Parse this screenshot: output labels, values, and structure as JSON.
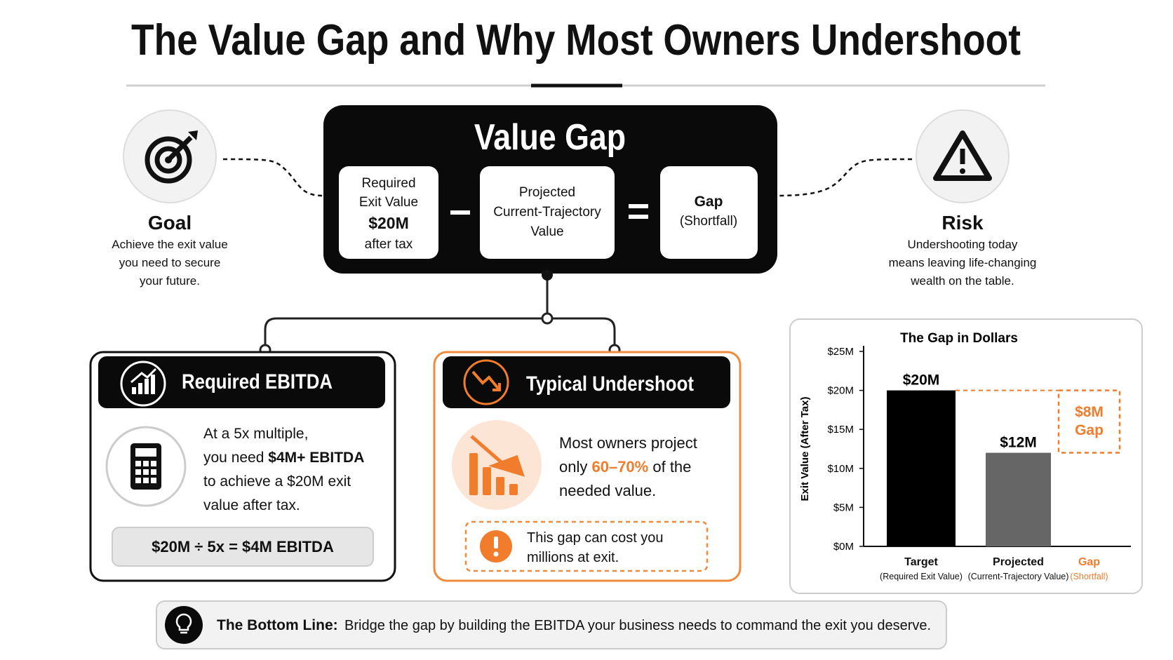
{
  "header": {
    "title": "The Value Gap and Why Most Owners Undershoot"
  },
  "formula": {
    "title": "Value Gap",
    "required": {
      "lines": [
        "Required",
        "Exit Value"
      ],
      "amount": "$20M",
      "note": "after tax"
    },
    "projected": {
      "lines": [
        "Projected",
        "Current-Trajectory",
        "Value"
      ]
    },
    "gap": {
      "label": "Gap",
      "note": "(Shortfall)"
    }
  },
  "goal": {
    "title": "Goal",
    "lines": [
      "Achieve the exit value",
      "you need to secure",
      "your future."
    ]
  },
  "risk": {
    "title": "Risk",
    "lines": [
      "Undershooting today",
      "means leaving life-changing",
      "wealth on the table."
    ]
  },
  "required_ebitda": {
    "title": "Required EBITDA",
    "body": [
      "At a 5x multiple,",
      "you need",
      "$4M+ EBITDA",
      "to achieve a $20M exit",
      "value after tax."
    ],
    "calculation": "$20M ÷ 5x = $4M EBITDA"
  },
  "undershoot": {
    "title": "Typical Undershoot",
    "body": [
      "Most owners project",
      "only",
      "60–70%",
      "of the",
      "needed value."
    ],
    "warning": [
      "This gap can cost you",
      "millions at exit."
    ]
  },
  "chart_data": {
    "type": "bar",
    "title": "The Gap in Dollars",
    "y_label": "Exit Value (After Tax)",
    "categories": [
      "Target",
      "Projected",
      "Gap"
    ],
    "sublabels": [
      "(Required Exit Value)",
      "(Current-Trajectory Value)",
      "(Shortfall)"
    ],
    "values": [
      20,
      12,
      8
    ],
    "value_labels": [
      "$20M",
      "$12M",
      "$8M Gap"
    ],
    "colors": [
      "#000000",
      "#666666",
      "#f07c2c"
    ],
    "styles": [
      "solid",
      "solid",
      "dashed"
    ],
    "ylim": [
      0,
      25
    ],
    "yticks": [
      {
        "value": 0,
        "label": "$0M"
      },
      {
        "value": 5,
        "label": "$5M"
      },
      {
        "value": 10,
        "label": "$10M"
      },
      {
        "value": 15,
        "label": "$15M"
      },
      {
        "value": 20,
        "label": "$20M"
      },
      {
        "value": 25,
        "label": "$25M"
      }
    ]
  },
  "bottom_line": {
    "label": "The Bottom Line:",
    "text": "Bridge the gap by building the EBITDA your business needs to command the exit you deserve."
  }
}
